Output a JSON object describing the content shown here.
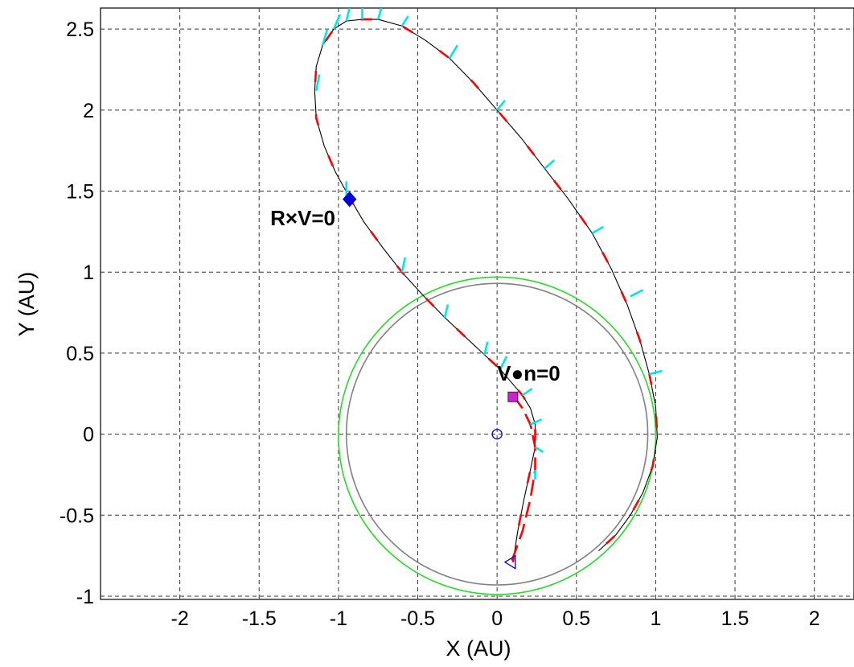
{
  "chart_data": {
    "type": "line",
    "xlabel": "X (AU)",
    "ylabel": "Y (AU)",
    "xlim": [
      -2.5,
      2.25
    ],
    "ylim": [
      -1.02,
      2.63
    ],
    "xticks": [
      -2,
      -1.5,
      -1,
      -0.5,
      0,
      0.5,
      1,
      1.5,
      2
    ],
    "yticks": [
      -1,
      -0.5,
      0,
      0.5,
      1,
      1.5,
      2,
      2.5
    ],
    "xtick_labels": [
      "-2",
      "-1.5",
      "-1",
      "-0.5",
      "0",
      "0.5",
      "1",
      "1.5",
      "2"
    ],
    "ytick_labels": [
      "-1",
      "-0.5",
      "0",
      "0.5",
      "1",
      "1.5",
      "2",
      "2.5"
    ],
    "grid": true,
    "colors": {
      "trajectory": "#000000",
      "thrust_arcs": "#ff0000",
      "thrust_vectors": "#00e5e5",
      "earth_orbit": "#808080",
      "target_orbit": "#22dd22",
      "sun": "#0000cc",
      "start_marker": "#0000cc",
      "rxv_marker": "#0000dd",
      "vn_marker": "#cc22cc"
    },
    "series": [
      {
        "role": "orbit",
        "center": [
          0,
          0
        ],
        "radius": 0.95,
        "color": "#808080"
      },
      {
        "role": "orbit",
        "center": [
          0,
          -0.01
        ],
        "radius": 1.0,
        "color": "#22dd22"
      },
      {
        "role": "trajectory",
        "color": "#000000",
        "x": [
          0.1,
          0.13,
          0.17,
          0.21,
          0.24,
          0.24,
          0.21,
          0.16,
          0.09,
          0.02,
          -0.08,
          -0.2,
          -0.33,
          -0.47,
          -0.6,
          -0.72,
          -0.84,
          -0.93,
          -1.02,
          -1.09,
          -1.14,
          -1.15,
          -1.14,
          -1.1,
          -1.03,
          -0.95,
          -0.85,
          -0.75,
          -0.6,
          -0.45,
          -0.3,
          -0.15,
          0.0,
          0.15,
          0.3,
          0.45,
          0.6,
          0.72,
          0.82,
          0.9,
          0.96,
          1.0,
          1.01,
          0.98,
          0.92,
          0.84,
          0.75,
          0.64
        ],
        "y": [
          -0.79,
          -0.6,
          -0.4,
          -0.22,
          -0.08,
          0.06,
          0.16,
          0.24,
          0.32,
          0.4,
          0.49,
          0.6,
          0.72,
          0.86,
          1.0,
          1.15,
          1.31,
          1.46,
          1.62,
          1.78,
          1.95,
          2.12,
          2.27,
          2.4,
          2.5,
          2.55,
          2.56,
          2.56,
          2.52,
          2.43,
          2.32,
          2.17,
          2.0,
          1.83,
          1.64,
          1.45,
          1.24,
          1.02,
          0.8,
          0.58,
          0.37,
          0.17,
          -0.02,
          -0.2,
          -0.36,
          -0.5,
          -0.62,
          -0.72
        ]
      },
      {
        "role": "thrust-arc",
        "color": "#ff0000",
        "x": [
          0.1,
          0.16,
          0.21,
          0.24,
          0.24,
          0.21,
          0.16,
          0.09
        ],
        "y": [
          0.24,
          0.16,
          0.06,
          -0.08,
          -0.22,
          -0.4,
          -0.6,
          -0.79
        ]
      }
    ],
    "thrust_vectors": [
      {
        "x": -1.14,
        "y": 2.12,
        "dx": 0.02,
        "dy": 0.1
      },
      {
        "x": -1.1,
        "y": 2.4,
        "dx": 0.03,
        "dy": 0.1
      },
      {
        "x": -1.03,
        "y": 2.5,
        "dx": 0.04,
        "dy": 0.09
      },
      {
        "x": -0.95,
        "y": 2.55,
        "dx": 0.02,
        "dy": 0.08
      },
      {
        "x": -0.85,
        "y": 2.56,
        "dx": 0.0,
        "dy": 0.08
      },
      {
        "x": -0.75,
        "y": 2.56,
        "dx": 0.02,
        "dy": 0.07
      },
      {
        "x": -0.6,
        "y": 2.52,
        "dx": 0.04,
        "dy": 0.06
      },
      {
        "x": -0.3,
        "y": 2.32,
        "dx": 0.05,
        "dy": 0.08
      },
      {
        "x": 0.0,
        "y": 2.0,
        "dx": 0.05,
        "dy": 0.06
      },
      {
        "x": 0.3,
        "y": 1.64,
        "dx": 0.06,
        "dy": 0.05
      },
      {
        "x": 0.6,
        "y": 1.24,
        "dx": 0.07,
        "dy": 0.04
      },
      {
        "x": 0.84,
        "y": 0.85,
        "dx": 0.08,
        "dy": 0.04
      },
      {
        "x": 0.96,
        "y": 0.37,
        "dx": 0.08,
        "dy": 0.02
      },
      {
        "x": -0.95,
        "y": 1.46,
        "dx": 0.0,
        "dy": 0.1
      },
      {
        "x": -0.6,
        "y": 1.0,
        "dx": 0.02,
        "dy": 0.09
      },
      {
        "x": -0.33,
        "y": 0.72,
        "dx": 0.02,
        "dy": 0.08
      },
      {
        "x": -0.08,
        "y": 0.49,
        "dx": 0.02,
        "dy": 0.08
      },
      {
        "x": 0.02,
        "y": 0.4,
        "dx": 0.04,
        "dy": 0.08
      },
      {
        "x": 0.16,
        "y": 0.24,
        "dx": 0.06,
        "dy": 0.04
      },
      {
        "x": 0.21,
        "y": 0.06,
        "dx": 0.07,
        "dy": 0.03
      },
      {
        "x": 0.24,
        "y": -0.08,
        "dx": 0.05,
        "dy": -0.03
      },
      {
        "x": 0.24,
        "y": -0.22,
        "dx": 0.0,
        "dy": -0.06
      }
    ],
    "markers": [
      {
        "name": "sun",
        "shape": "circle",
        "x": 0.0,
        "y": 0.0,
        "color": "#0000cc"
      },
      {
        "name": "start",
        "shape": "triangle-left",
        "x": 0.09,
        "y": -0.79,
        "color": "#0000cc"
      },
      {
        "name": "rxv-zero",
        "shape": "diamond",
        "x": -0.93,
        "y": 1.45,
        "color": "#0000dd"
      },
      {
        "name": "vn-zero",
        "shape": "square",
        "x": 0.1,
        "y": 0.23,
        "color": "#cc22cc"
      }
    ],
    "annotations": [
      {
        "name": "rxv-label",
        "text": "R×V=0",
        "x": -1.43,
        "y": 1.29
      },
      {
        "name": "vn-label",
        "text": "V●n=0",
        "x": 0.0,
        "y": 0.33
      }
    ]
  }
}
